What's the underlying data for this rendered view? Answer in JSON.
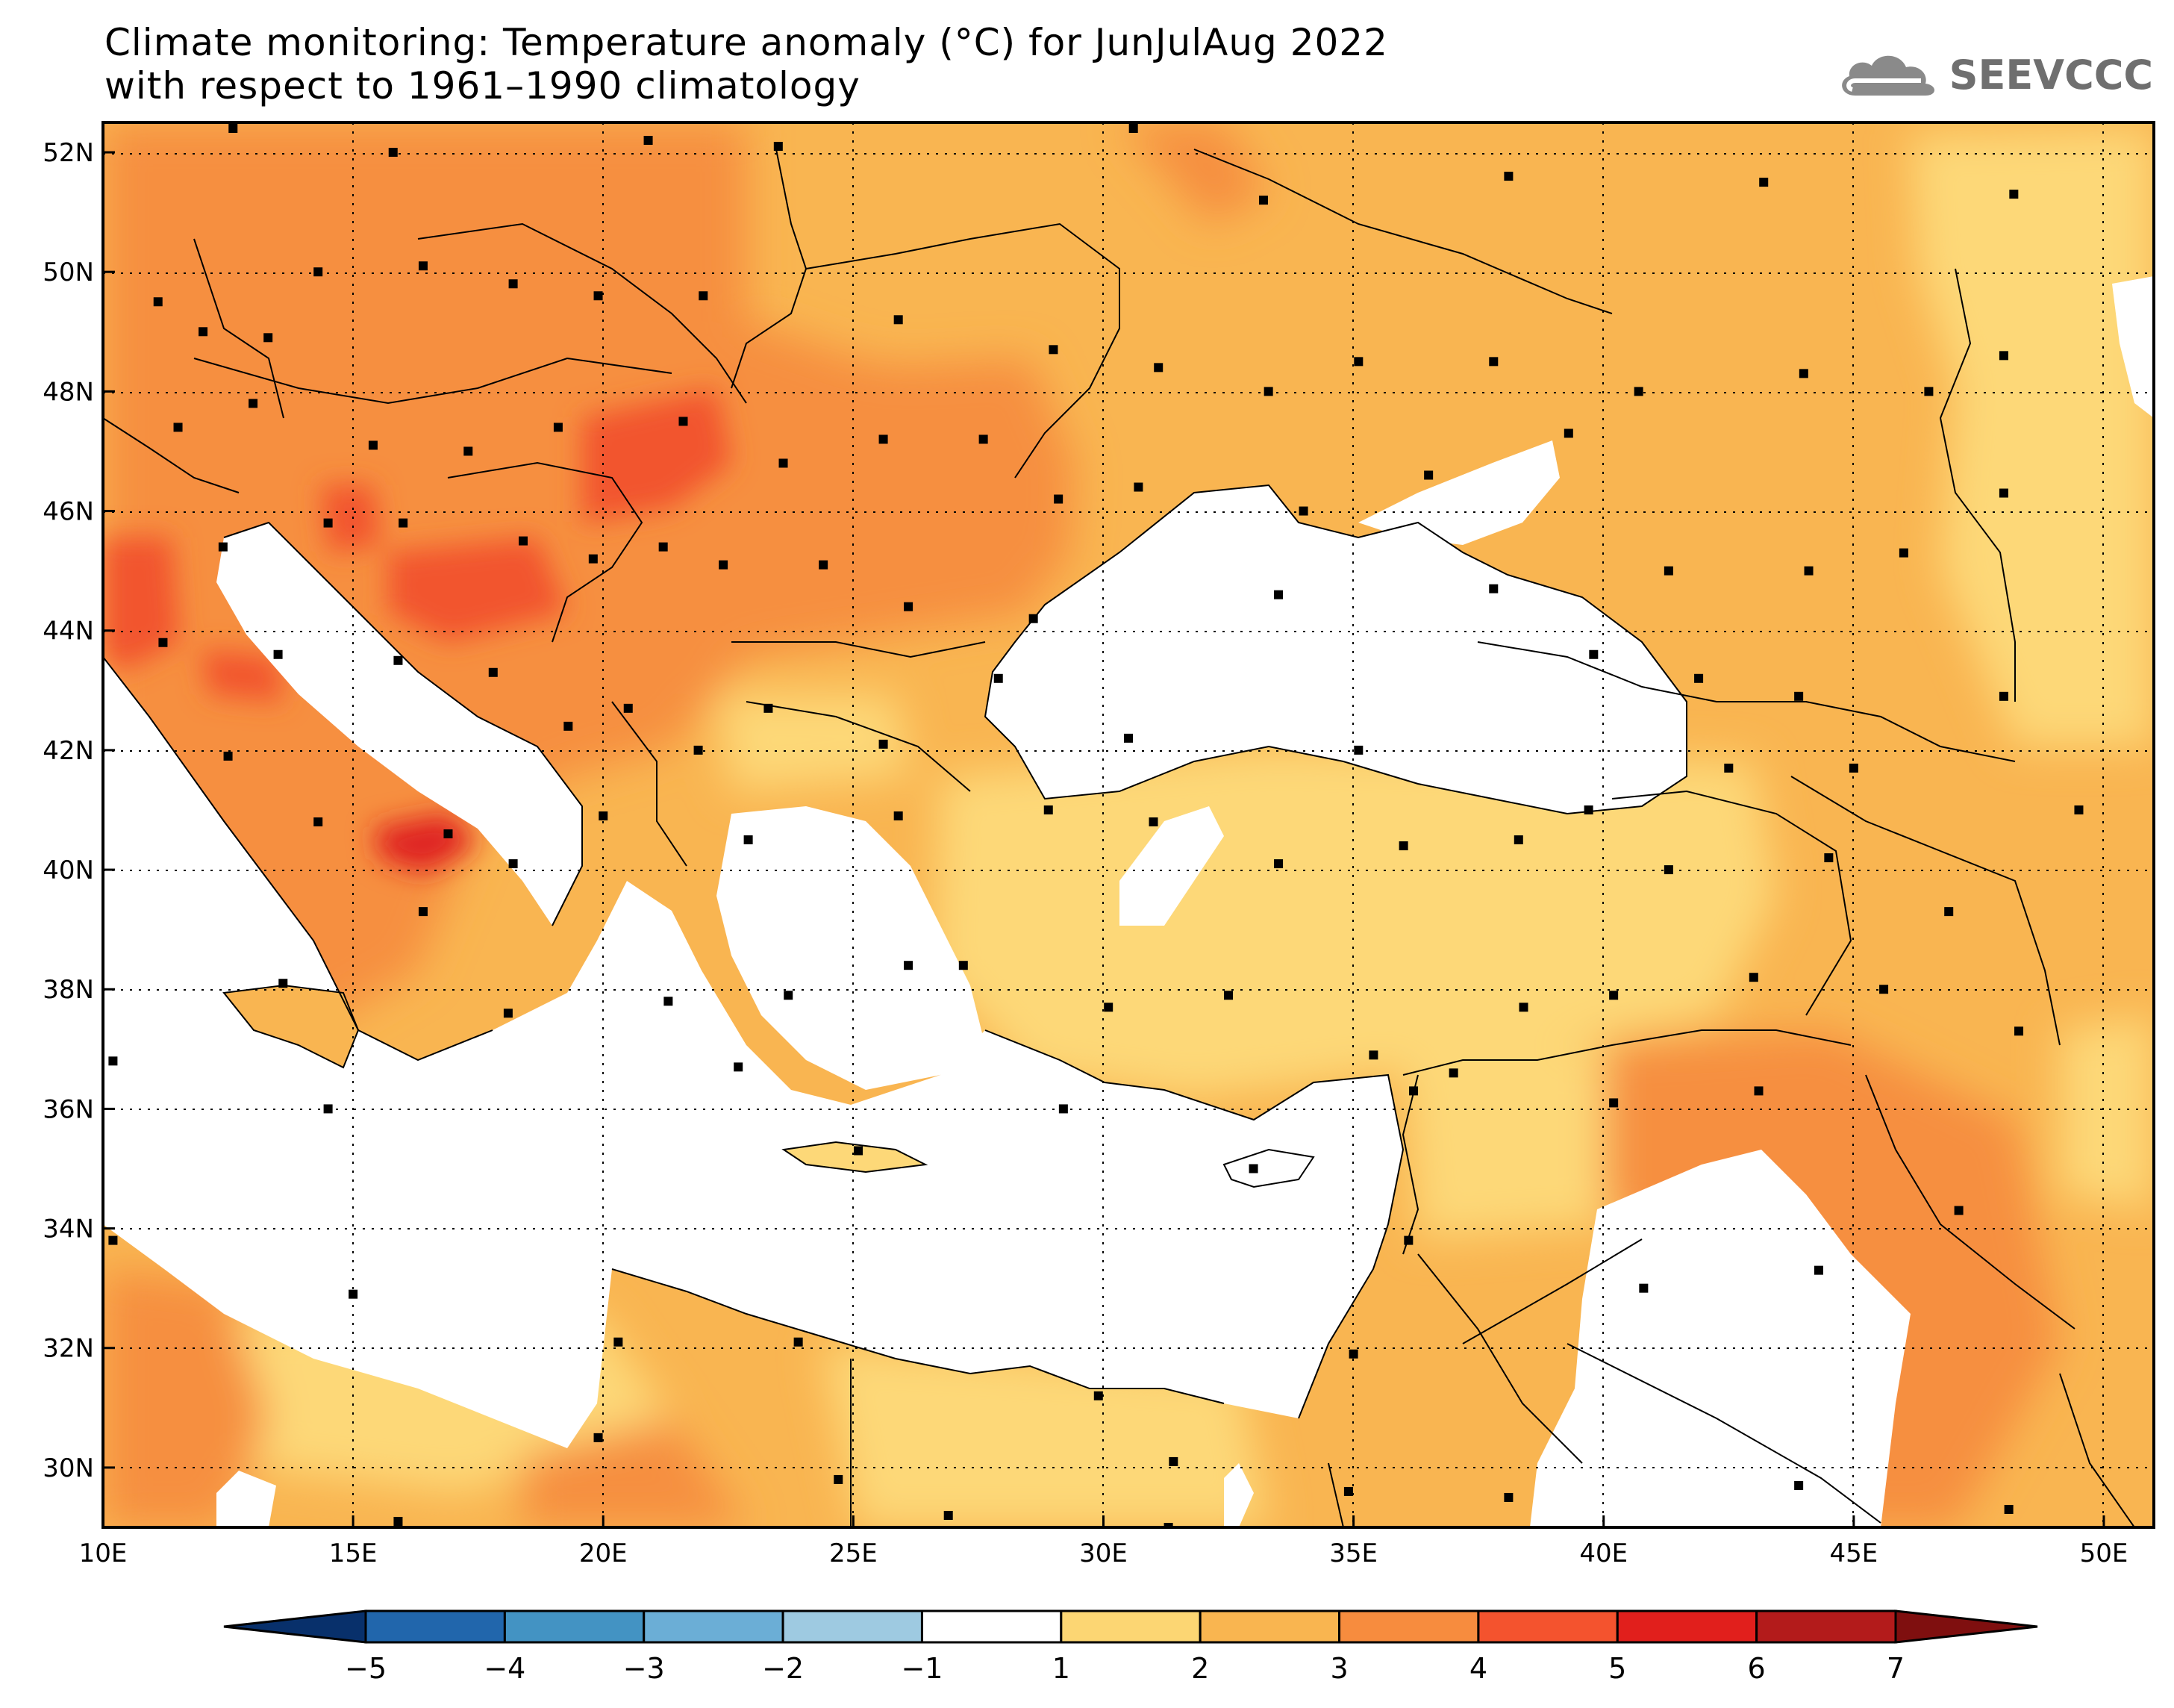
{
  "title": {
    "line1": "Climate monitoring: Temperature anomaly (°C) for JunJulAug 2022",
    "line2": "with respect to 1961–1990 climatology"
  },
  "logo": {
    "text": "SEEVCCC",
    "icon": "cloud-icon"
  },
  "map": {
    "lon_range": [
      10,
      51
    ],
    "lat_range": [
      29,
      52.5
    ],
    "lat_labels": [
      "30N",
      "32N",
      "34N",
      "36N",
      "38N",
      "40N",
      "42N",
      "44N",
      "46N",
      "48N",
      "50N",
      "52N"
    ],
    "lon_labels": [
      "10E",
      "15E",
      "20E",
      "25E",
      "30E",
      "35E",
      "40E",
      "45E",
      "50E"
    ],
    "grid": "dotted"
  },
  "colorbar": {
    "labels": [
      "−5",
      "−4",
      "−3",
      "−2",
      "−1",
      "1",
      "2",
      "3",
      "4",
      "5",
      "6",
      "7"
    ],
    "colors": [
      "#08306b",
      "#2166ac",
      "#4393c3",
      "#6baed6",
      "#9ecae1",
      "#ffffff",
      "#fcd673",
      "#f9b550",
      "#f78c3e",
      "#f4532e",
      "#e11f1c",
      "#b31b1b",
      "#7f0f0f"
    ]
  },
  "legend_colors": {
    "white": "#ffffff",
    "c1": "#fdd878",
    "c2": "#f9b551",
    "c3": "#f68f3f",
    "c4": "#f2552d",
    "c5": "#df2320"
  }
}
